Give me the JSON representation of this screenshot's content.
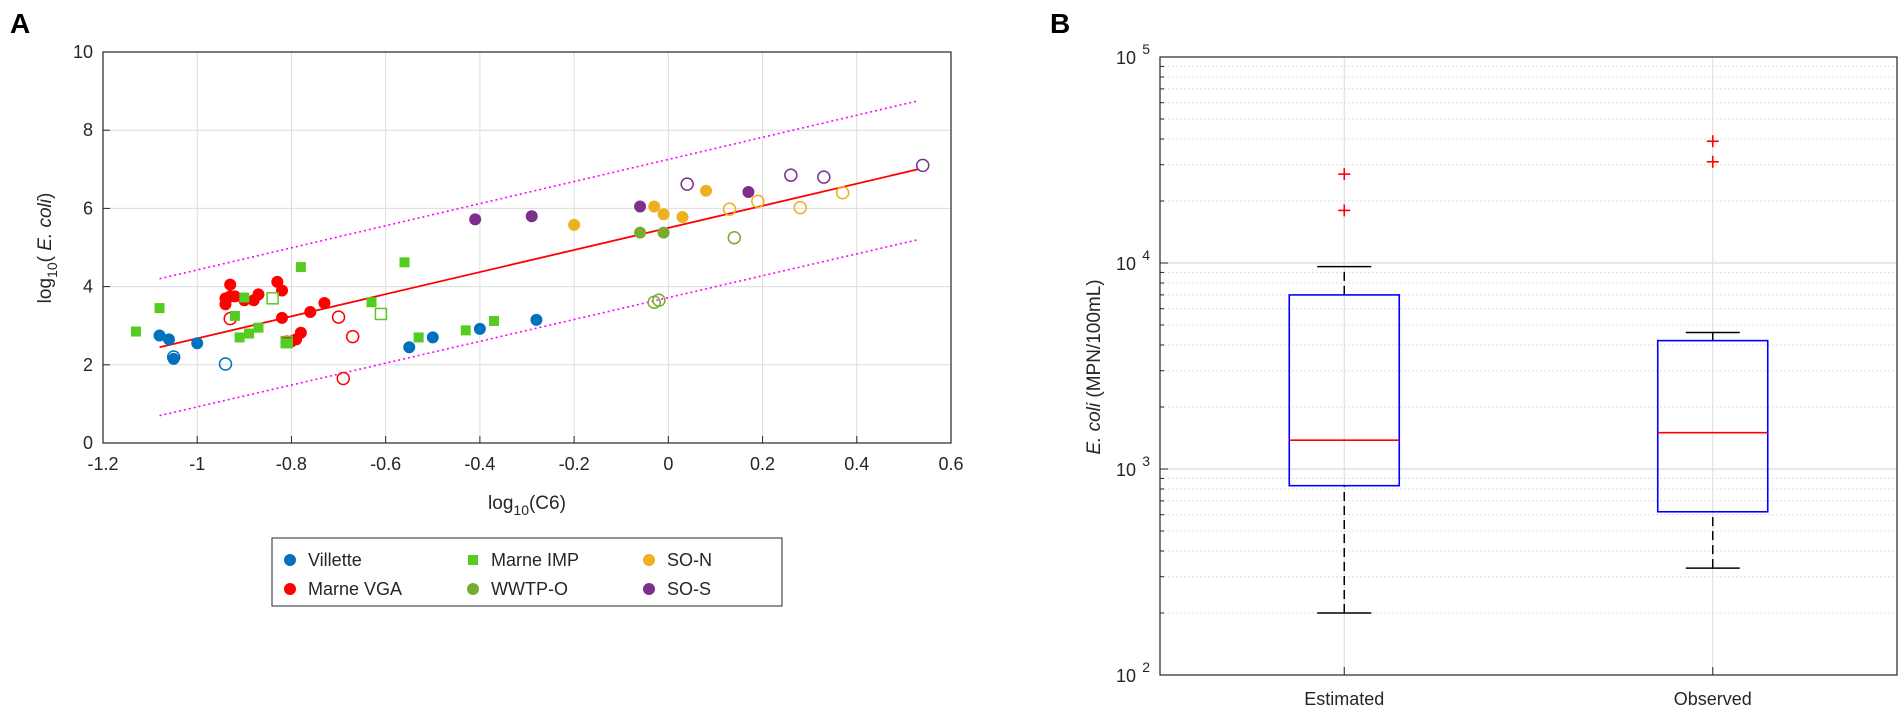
{
  "panels": {
    "a_label": "A",
    "b_label": "B"
  },
  "chart_data": [
    {
      "type": "scatter",
      "panel": "A",
      "xlabel": "log10(C6)",
      "ylabel": "log10( E. coli)",
      "xlim": [
        -1.2,
        0.6
      ],
      "ylim": [
        0,
        10
      ],
      "xticks": [
        -1.2,
        -1,
        -0.8,
        -0.6,
        -0.4,
        -0.2,
        0,
        0.2,
        0.4,
        0.6
      ],
      "xtick_labels": [
        "-1.2",
        "-1",
        "-0.8",
        "-0.6",
        "-0.4",
        "-0.2",
        "0",
        "0.2",
        "0.4",
        "0.6"
      ],
      "yticks": [
        0,
        2,
        4,
        6,
        8,
        10
      ],
      "ytick_labels": [
        "0",
        "2",
        "4",
        "6",
        "8",
        "10"
      ],
      "grid": true,
      "legend_position": "below",
      "series": [
        {
          "name": "Villette",
          "marker": "circle",
          "color": "#0072BD",
          "filled": [
            [
              -1.08,
              2.75
            ],
            [
              -1.06,
              2.65
            ],
            [
              -1.05,
              2.15
            ],
            [
              -1.0,
              2.55
            ],
            [
              -0.55,
              2.45
            ],
            [
              -0.5,
              2.7
            ],
            [
              -0.4,
              2.92
            ],
            [
              -0.28,
              3.15
            ]
          ],
          "open": [
            [
              -1.05,
              2.2
            ],
            [
              -0.94,
              2.02
            ]
          ]
        },
        {
          "name": "Marne VGA",
          "marker": "circle",
          "color": "#FF0000",
          "filled": [
            [
              -0.94,
              3.55
            ],
            [
              -0.94,
              3.7
            ],
            [
              -0.93,
              3.75
            ],
            [
              -0.93,
              4.05
            ],
            [
              -0.92,
              3.75
            ],
            [
              -0.9,
              3.65
            ],
            [
              -0.88,
              3.65
            ],
            [
              -0.87,
              3.8
            ],
            [
              -0.83,
              4.12
            ],
            [
              -0.82,
              3.9
            ],
            [
              -0.82,
              3.2
            ],
            [
              -0.81,
              2.6
            ],
            [
              -0.8,
              2.6
            ],
            [
              -0.79,
              2.65
            ],
            [
              -0.78,
              2.82
            ],
            [
              -0.76,
              3.35
            ],
            [
              -0.73,
              3.58
            ]
          ],
          "open": [
            [
              -0.93,
              3.18
            ],
            [
              -0.7,
              3.22
            ],
            [
              -0.69,
              1.65
            ],
            [
              -0.67,
              2.72
            ]
          ]
        },
        {
          "name": "Marne IMP",
          "marker": "square",
          "color": "#55CC22",
          "filled": [
            [
              -1.13,
              2.85
            ],
            [
              -1.08,
              3.45
            ],
            [
              -0.92,
              3.25
            ],
            [
              -0.91,
              2.7
            ],
            [
              -0.9,
              3.72
            ],
            [
              -0.89,
              2.8
            ],
            [
              -0.87,
              2.95
            ],
            [
              -0.81,
              2.55
            ],
            [
              -0.78,
              4.5
            ],
            [
              -0.63,
              3.6
            ],
            [
              -0.56,
              4.62
            ],
            [
              -0.53,
              2.7
            ],
            [
              -0.43,
              2.88
            ],
            [
              -0.37,
              3.12
            ]
          ],
          "open": [
            [
              -0.84,
              3.7
            ],
            [
              -0.81,
              2.58
            ],
            [
              -0.61,
              3.3
            ]
          ]
        },
        {
          "name": "WWTP-O",
          "marker": "circle",
          "color": "#77AC30",
          "filled": [
            [
              -0.06,
              5.38
            ],
            [
              -0.01,
              5.38
            ]
          ],
          "open": [
            [
              -0.03,
              3.6
            ],
            [
              -0.02,
              3.65
            ],
            [
              0.14,
              5.25
            ]
          ]
        },
        {
          "name": "SO-N",
          "marker": "circle",
          "color": "#EDB120",
          "filled": [
            [
              -0.2,
              5.58
            ],
            [
              -0.03,
              6.05
            ],
            [
              -0.01,
              5.85
            ],
            [
              0.03,
              5.78
            ],
            [
              0.08,
              6.45
            ]
          ],
          "open": [
            [
              0.13,
              5.98
            ],
            [
              0.19,
              6.18
            ],
            [
              0.28,
              6.02
            ],
            [
              0.37,
              6.4
            ]
          ]
        },
        {
          "name": "SO-S",
          "marker": "circle",
          "color": "#7E2F8E",
          "filled": [
            [
              -0.41,
              5.72
            ],
            [
              -0.29,
              5.8
            ],
            [
              -0.06,
              6.05
            ],
            [
              0.17,
              6.42
            ]
          ],
          "open": [
            [
              0.04,
              6.62
            ],
            [
              0.26,
              6.85
            ],
            [
              0.33,
              6.8
            ],
            [
              0.54,
              7.1
            ]
          ]
        }
      ],
      "fit_line": {
        "color": "#FF0000",
        "points": [
          [
            -1.08,
            2.45
          ],
          [
            0.53,
            7.0
          ]
        ]
      },
      "prediction_bounds": {
        "color": "#FF00FF",
        "upper": [
          [
            -1.08,
            4.2
          ],
          [
            0.53,
            8.75
          ]
        ],
        "lower": [
          [
            -1.08,
            0.7
          ],
          [
            0.53,
            5.2
          ]
        ]
      }
    },
    {
      "type": "box",
      "panel": "B",
      "ylabel_italic": "E. coli",
      "ylabel_rest": " (MPN/100mL)",
      "yscale": "log",
      "ylim": [
        100,
        100000
      ],
      "ytick_base": "10",
      "ytick_exponents": [
        "2",
        "3",
        "4",
        "5"
      ],
      "categories": [
        "Estimated",
        "Observed"
      ],
      "grid": true,
      "boxes": [
        {
          "name": "Estimated",
          "whisker_low": 200,
          "q1": 830,
          "median": 1380,
          "q3": 7000,
          "whisker_high": 9600,
          "outliers": [
            18000,
            27000
          ]
        },
        {
          "name": "Observed",
          "whisker_low": 330,
          "q1": 620,
          "median": 1500,
          "q3": 4200,
          "whisker_high": 4600,
          "outliers": [
            31000,
            39000
          ]
        }
      ],
      "colors": {
        "box": "#0000FF",
        "median": "#FF0000",
        "whisker": "#000000",
        "outlier": "#FF0000"
      }
    }
  ]
}
